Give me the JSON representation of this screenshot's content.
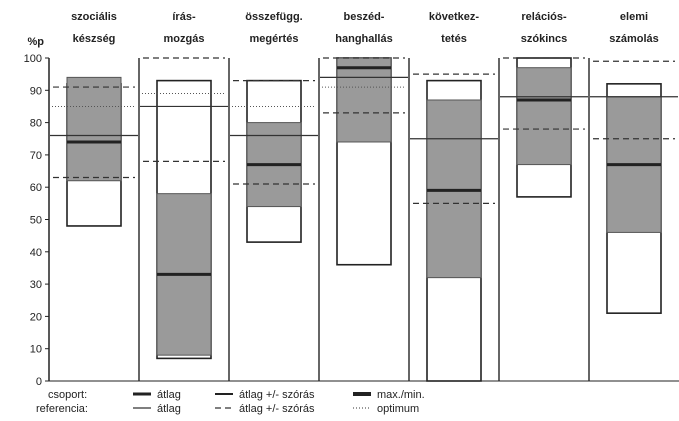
{
  "chart_data": {
    "type": "box-range",
    "ylabel": "%p",
    "ylim": [
      0,
      100
    ],
    "yticks": [
      0,
      10,
      20,
      30,
      40,
      50,
      60,
      70,
      80,
      90,
      100
    ],
    "categories": [
      {
        "line1": "szociális",
        "line2": "készség"
      },
      {
        "line1": "írás-",
        "line2": "mozgás"
      },
      {
        "line1": "összefügg.",
        "line2": "megértés"
      },
      {
        "line1": "beszéd-",
        "line2": "hanghallás"
      },
      {
        "line1": "következ-",
        "line2": "tetés"
      },
      {
        "line1": "relációs-",
        "line2": "szókincs"
      },
      {
        "line1": "elemi",
        "line2": "számolás"
      }
    ],
    "groups": [
      {
        "max": 92,
        "min": 48,
        "mean": 74,
        "sd_hi": 94,
        "sd_lo": 62
      },
      {
        "max": 93,
        "min": 7,
        "mean": 33,
        "sd_hi": 58,
        "sd_lo": 8
      },
      {
        "max": 93,
        "min": 43,
        "mean": 67,
        "sd_hi": 80,
        "sd_lo": 54
      },
      {
        "max": 100,
        "min": 36,
        "mean": 97,
        "sd_hi": 100,
        "sd_lo": 74
      },
      {
        "max": 93,
        "min": 0,
        "mean": 59,
        "sd_hi": 87,
        "sd_lo": 32
      },
      {
        "max": 100,
        "min": 57,
        "mean": 87,
        "sd_hi": 97,
        "sd_lo": 67
      },
      {
        "max": 92,
        "min": 21,
        "mean": 67,
        "sd_hi": 88,
        "sd_lo": 46
      }
    ],
    "reference": [
      {
        "mean": 76,
        "sd_hi": 91,
        "sd_lo": 63,
        "optimum": 85
      },
      {
        "mean": 85,
        "sd_hi": 100,
        "sd_lo": 68,
        "optimum": 89
      },
      {
        "mean": 76,
        "sd_hi": 93,
        "sd_lo": 61,
        "optimum": 85
      },
      {
        "mean": 94,
        "sd_hi": 100,
        "sd_lo": 83,
        "optimum": 91
      },
      {
        "mean": 75,
        "sd_hi": 95,
        "sd_lo": 55,
        "optimum": null
      },
      {
        "mean": 88,
        "sd_hi": 100,
        "sd_lo": 78,
        "optimum": null
      },
      {
        "mean": 88,
        "sd_hi": 99,
        "sd_lo": 75,
        "optimum": null
      }
    ],
    "legend": {
      "group_label": "csoport:",
      "reference_label": "referencia:",
      "group_items": [
        "átlag",
        "átlag +/- szórás",
        "max./min."
      ],
      "reference_items": [
        "átlag",
        "átlag +/- szórás",
        "optimum"
      ]
    },
    "colors": {
      "sd_fill": "#9a9a9a",
      "line": "#333333",
      "max_min_box": "#222222"
    }
  }
}
